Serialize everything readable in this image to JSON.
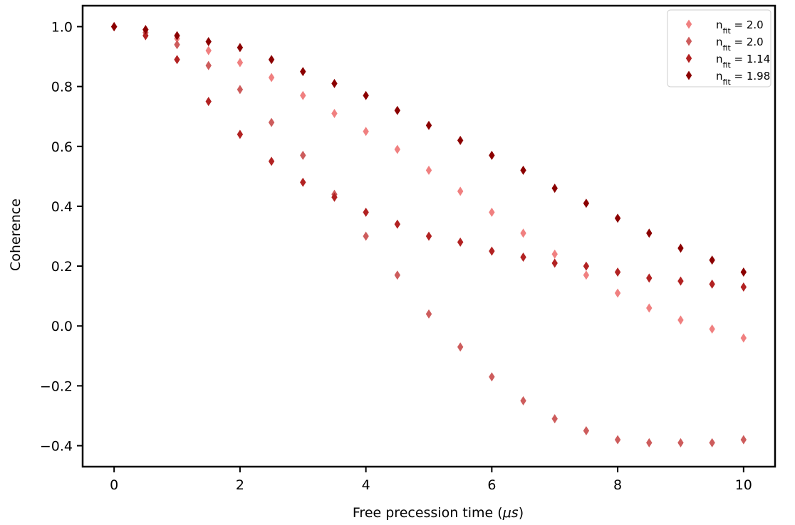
{
  "chart_data": {
    "type": "scatter",
    "title": "",
    "xlabel": "Free precession time (",
    "xlabel_unit": "μs",
    "xlabel_close": ")",
    "ylabel": "Coherence",
    "xlim": [
      -0.5,
      10.5
    ],
    "ylim": [
      -0.47,
      1.07
    ],
    "xticks": [
      0,
      2,
      4,
      6,
      8,
      10
    ],
    "xtick_labels": [
      "0",
      "2",
      "4",
      "6",
      "8",
      "10"
    ],
    "yticks": [
      -0.4,
      -0.2,
      0.0,
      0.2,
      0.4,
      0.6,
      0.8,
      1.0
    ],
    "ytick_labels": [
      "−0.4",
      "−0.2",
      "0.0",
      "0.2",
      "0.4",
      "0.6",
      "0.8",
      "1.0"
    ],
    "grid": false,
    "legend_position": "top-right",
    "marker": "diamond",
    "series": [
      {
        "label_main": "n",
        "label_sub": "fit",
        "label_value": " = 2.0",
        "color": "#f08080",
        "x": [
          0,
          0.5,
          1,
          1.5,
          2,
          2.5,
          3,
          3.5,
          4,
          4.5,
          5,
          5.5,
          6,
          6.5,
          7,
          7.5,
          8,
          8.5,
          9,
          9.5,
          10
        ],
        "y": [
          1.0,
          0.99,
          0.96,
          0.92,
          0.88,
          0.83,
          0.77,
          0.71,
          0.65,
          0.59,
          0.52,
          0.45,
          0.38,
          0.31,
          0.24,
          0.17,
          0.11,
          0.06,
          0.02,
          -0.01,
          -0.04
        ]
      },
      {
        "label_main": "n",
        "label_sub": "fit",
        "label_value": " = 2.0",
        "color": "#cd5c5c",
        "x": [
          0,
          0.5,
          1,
          1.5,
          2,
          2.5,
          3,
          3.5,
          4,
          4.5,
          5,
          5.5,
          6,
          6.5,
          7,
          7.5,
          8,
          8.5,
          9,
          9.5,
          10
        ],
        "y": [
          1.0,
          0.98,
          0.94,
          0.87,
          0.79,
          0.68,
          0.57,
          0.44,
          0.3,
          0.17,
          0.04,
          -0.07,
          -0.17,
          -0.25,
          -0.31,
          -0.35,
          -0.38,
          -0.39,
          -0.39,
          -0.39,
          -0.38
        ]
      },
      {
        "label_main": "n",
        "label_sub": "fit",
        "label_value": " = 1.14",
        "color": "#b22222",
        "x": [
          0,
          0.5,
          1,
          1.5,
          2,
          2.5,
          3,
          3.5,
          4,
          4.5,
          5,
          5.5,
          6,
          6.5,
          7,
          7.5,
          8,
          8.5,
          9,
          9.5,
          10
        ],
        "y": [
          1.0,
          0.97,
          0.89,
          0.75,
          0.64,
          0.55,
          0.48,
          0.43,
          0.38,
          0.34,
          0.3,
          0.28,
          0.25,
          0.23,
          0.21,
          0.2,
          0.18,
          0.16,
          0.15,
          0.14,
          0.13
        ]
      },
      {
        "label_main": "n",
        "label_sub": "fit",
        "label_value": " = 1.98",
        "color": "#8b0000",
        "x": [
          0,
          0.5,
          1,
          1.5,
          2,
          2.5,
          3,
          3.5,
          4,
          4.5,
          5,
          5.5,
          6,
          6.5,
          7,
          7.5,
          8,
          8.5,
          9,
          9.5,
          10
        ],
        "y": [
          1.0,
          0.99,
          0.97,
          0.95,
          0.93,
          0.89,
          0.85,
          0.81,
          0.77,
          0.72,
          0.67,
          0.62,
          0.57,
          0.52,
          0.46,
          0.41,
          0.36,
          0.31,
          0.26,
          0.22,
          0.18
        ]
      }
    ]
  }
}
